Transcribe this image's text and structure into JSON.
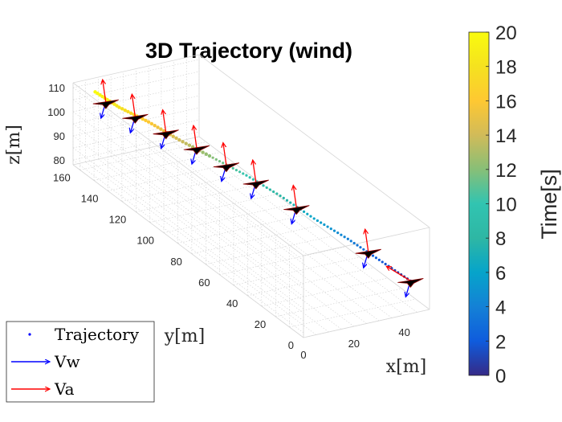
{
  "chart_data": {
    "type": "scatter",
    "title": "3D Trajectory (wind)",
    "xlabel": "x[m]",
    "ylabel": "y[m]",
    "zlabel": "z[m]",
    "xticks": [
      "0",
      "20",
      "40"
    ],
    "yticks": [
      "0",
      "20",
      "40",
      "60",
      "80",
      "100",
      "120",
      "140",
      "160"
    ],
    "zticks": [
      "80",
      "90",
      "100",
      "110"
    ],
    "xlim": [
      0,
      50
    ],
    "ylim": [
      0,
      165
    ],
    "zlim": [
      78,
      112
    ],
    "grid": true,
    "colorbar": {
      "label": "Time[s]",
      "range": [
        0,
        20
      ],
      "ticks": [
        "0",
        "2",
        "4",
        "6",
        "8",
        "10",
        "12",
        "14",
        "16",
        "18",
        "20"
      ]
    },
    "legend": {
      "placement": "bottom-left",
      "entries": [
        "Trajectory",
        "Vw",
        "Va"
      ]
    },
    "series": [
      {
        "name": "Trajectory",
        "points": [
          {
            "t": 0,
            "x": 48,
            "y": 10,
            "z": 86
          },
          {
            "t": 2,
            "x": 45,
            "y": 27,
            "z": 88
          },
          {
            "t": 4,
            "x": 42,
            "y": 44,
            "z": 90
          },
          {
            "t": 6,
            "x": 38,
            "y": 61,
            "z": 92
          },
          {
            "t": 8,
            "x": 34,
            "y": 78,
            "z": 95
          },
          {
            "t": 10,
            "x": 30,
            "y": 95,
            "z": 97
          },
          {
            "t": 12,
            "x": 25,
            "y": 110,
            "z": 99
          },
          {
            "t": 14,
            "x": 20,
            "y": 125,
            "z": 101
          },
          {
            "t": 16,
            "x": 15,
            "y": 138,
            "z": 104
          },
          {
            "t": 18,
            "x": 10,
            "y": 150,
            "z": 106
          },
          {
            "t": 20,
            "x": 6,
            "y": 160,
            "z": 109
          }
        ]
      }
    ],
    "aircraft": [
      {
        "x": 48,
        "y": 10,
        "z": 86
      },
      {
        "x": 44,
        "y": 33,
        "z": 89
      },
      {
        "x": 36,
        "y": 70,
        "z": 93
      },
      {
        "x": 31,
        "y": 90,
        "z": 96
      },
      {
        "x": 27,
        "y": 104,
        "z": 98
      },
      {
        "x": 23,
        "y": 118,
        "z": 100
      },
      {
        "x": 18,
        "y": 131,
        "z": 102
      },
      {
        "x": 13,
        "y": 144,
        "z": 104
      },
      {
        "x": 8,
        "y": 156,
        "z": 106
      }
    ],
    "colors": {
      "vw_arrow": "#0000ff",
      "va_arrow": "#ff0000",
      "aircraft_fill": "#000000",
      "aircraft_edge": "#8b0000"
    }
  }
}
